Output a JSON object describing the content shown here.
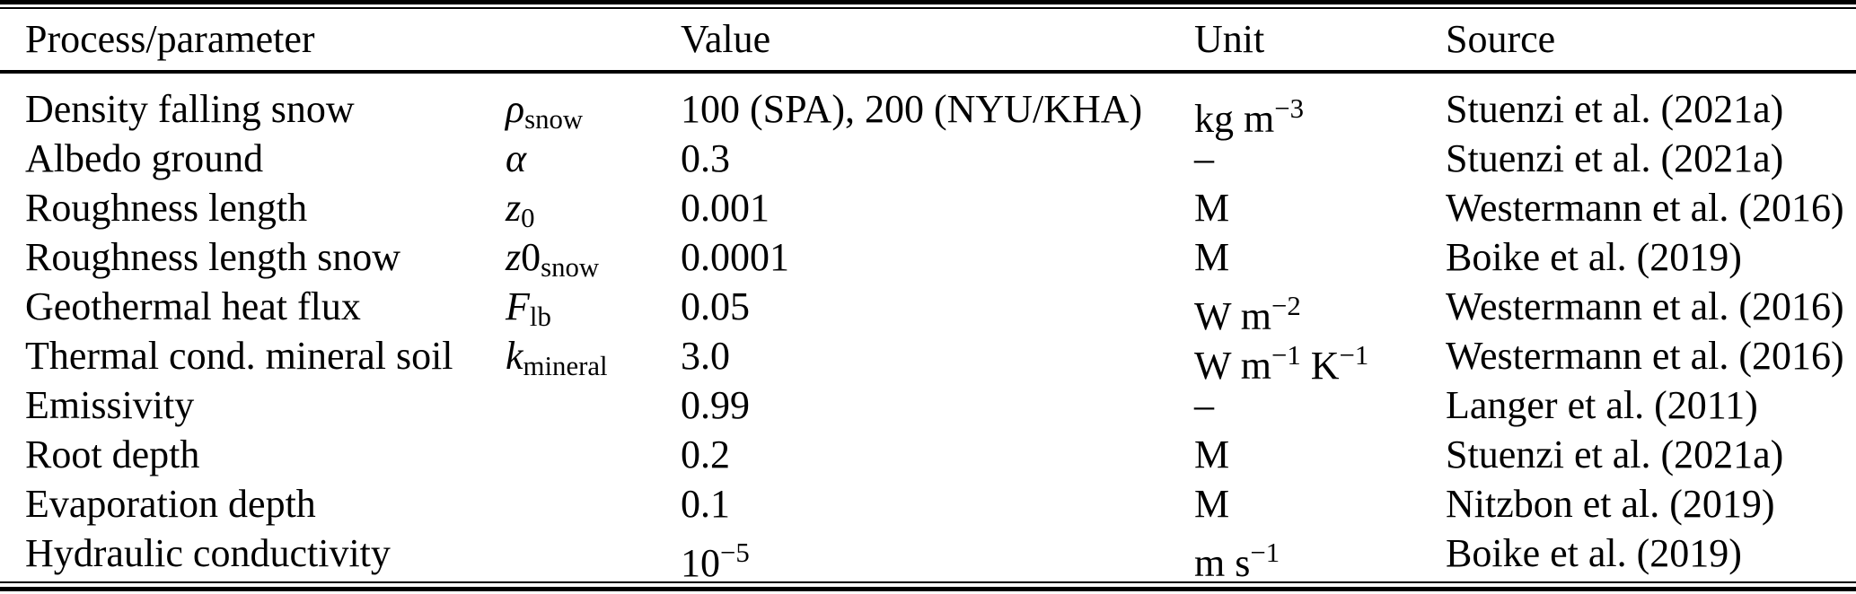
{
  "colors": {
    "text": "#000000",
    "background": "#ffffff",
    "rule": "#000000"
  },
  "table": {
    "headers": {
      "process": "Process/parameter",
      "value": "Value",
      "unit": "Unit",
      "source": "Source"
    },
    "rows": [
      {
        "process": "Density falling snow",
        "symbol": [
          {
            "t": "ρ",
            "style": "italic"
          },
          {
            "t": "snow",
            "style": "sub"
          }
        ],
        "value": [
          {
            "t": "100 (SPA), 200 (NYU/KHA)"
          }
        ],
        "unit": [
          {
            "t": "kg m"
          },
          {
            "t": "−3",
            "style": "sup"
          }
        ],
        "source": "Stuenzi et al. (2021a)"
      },
      {
        "process": "Albedo ground",
        "symbol": [
          {
            "t": "α",
            "style": "italic"
          }
        ],
        "value": [
          {
            "t": "0.3"
          }
        ],
        "unit": [
          {
            "t": "–"
          }
        ],
        "source": "Stuenzi et al. (2021a)"
      },
      {
        "process": "Roughness length",
        "symbol": [
          {
            "t": "z",
            "style": "italic"
          },
          {
            "t": "0",
            "style": "sub"
          }
        ],
        "value": [
          {
            "t": "0.001"
          }
        ],
        "unit": [
          {
            "t": "M"
          }
        ],
        "source": "Westermann et al. (2016)"
      },
      {
        "process": "Roughness length snow",
        "symbol": [
          {
            "t": "z",
            "style": "italic"
          },
          {
            "t": "0"
          },
          {
            "t": "snow",
            "style": "sub"
          }
        ],
        "value": [
          {
            "t": "0.0001"
          }
        ],
        "unit": [
          {
            "t": "M"
          }
        ],
        "source": "Boike et al. (2019)"
      },
      {
        "process": "Geothermal heat flux",
        "symbol": [
          {
            "t": "F",
            "style": "italic"
          },
          {
            "t": "lb",
            "style": "sub"
          }
        ],
        "value": [
          {
            "t": "0.05"
          }
        ],
        "unit": [
          {
            "t": "W m"
          },
          {
            "t": "−2",
            "style": "sup"
          }
        ],
        "source": "Westermann et al. (2016)"
      },
      {
        "process": "Thermal cond. mineral soil",
        "symbol": [
          {
            "t": "k",
            "style": "italic"
          },
          {
            "t": "mineral",
            "style": "sub"
          }
        ],
        "value": [
          {
            "t": "3.0"
          }
        ],
        "unit": [
          {
            "t": "W m"
          },
          {
            "t": "−1",
            "style": "sup"
          },
          {
            "t": " K"
          },
          {
            "t": "−1",
            "style": "sup"
          }
        ],
        "source": "Westermann et al. (2016)"
      },
      {
        "process": "Emissivity",
        "symbol": [],
        "value": [
          {
            "t": "0.99"
          }
        ],
        "unit": [
          {
            "t": "–"
          }
        ],
        "source": "Langer et al. (2011)"
      },
      {
        "process": "Root depth",
        "symbol": [],
        "value": [
          {
            "t": "0.2"
          }
        ],
        "unit": [
          {
            "t": "M"
          }
        ],
        "source": "Stuenzi et al. (2021a)"
      },
      {
        "process": "Evaporation depth",
        "symbol": [],
        "value": [
          {
            "t": "0.1"
          }
        ],
        "unit": [
          {
            "t": "M"
          }
        ],
        "source": "Nitzbon et al. (2019)"
      },
      {
        "process": "Hydraulic conductivity",
        "symbol": [],
        "value": [
          {
            "t": "10"
          },
          {
            "t": "−5",
            "style": "sup"
          }
        ],
        "unit": [
          {
            "t": "m s"
          },
          {
            "t": "−1",
            "style": "sup"
          }
        ],
        "source": "Boike et al. (2019)"
      }
    ]
  }
}
